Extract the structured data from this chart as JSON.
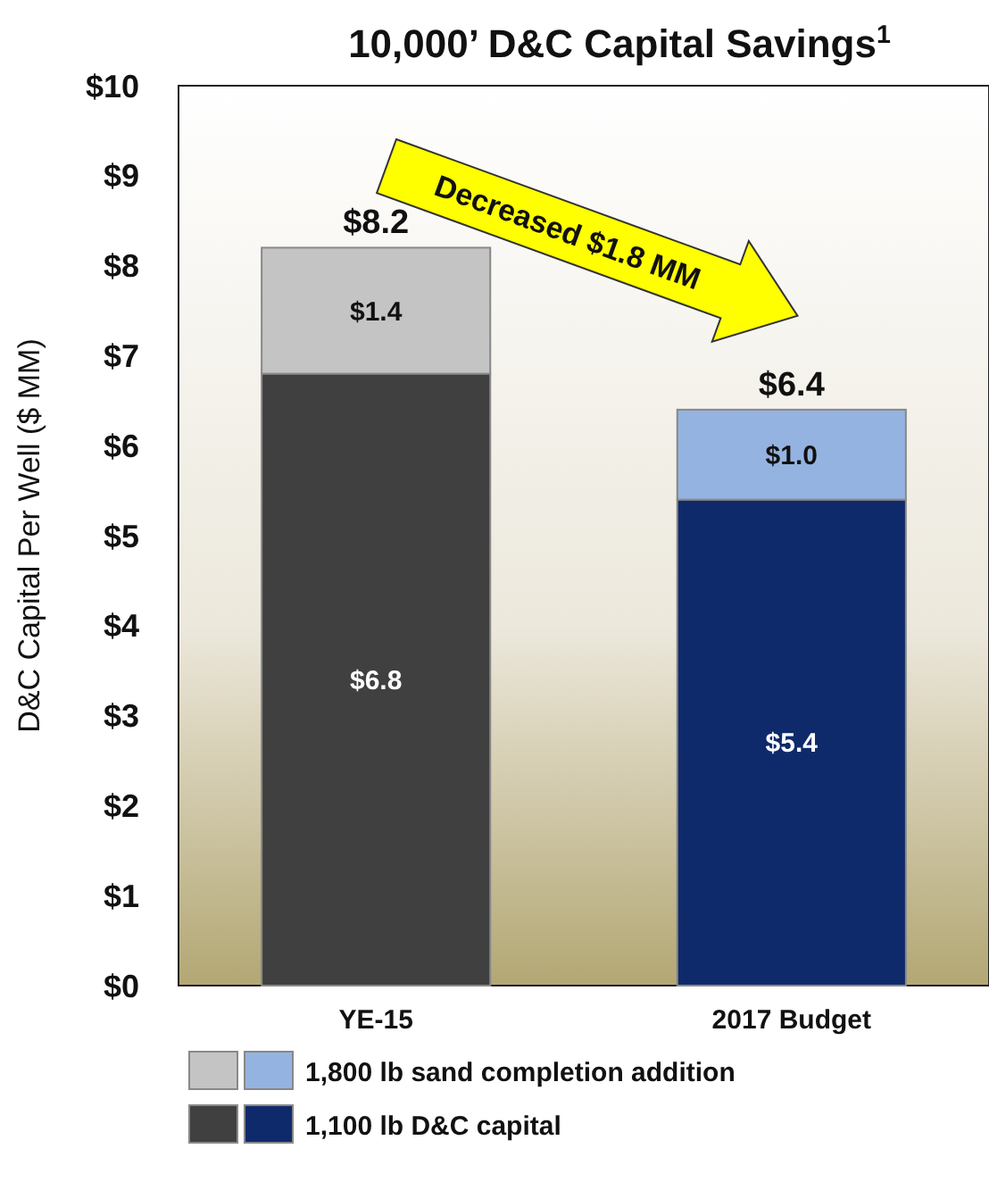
{
  "chart_data": {
    "type": "bar",
    "title": "10,000’ D&C Capital Savings$^{1}$",
    "ylabel": "D&C Capital Per Well ($ MM)",
    "categories": [
      "YE-15",
      "2017 Budget"
    ],
    "stacked": true,
    "series": [
      {
        "name": "1,100 lb D&C capital",
        "colors": [
          "#404040",
          "#0f2a6b"
        ],
        "values": [
          6.8,
          5.4
        ],
        "value_labels": [
          "$6.8",
          "$5.4"
        ]
      },
      {
        "name": "1,800 lb sand completion addition",
        "colors": [
          "#c4c4c4",
          "#95b3e0"
        ],
        "values": [
          1.4,
          1.0
        ],
        "value_labels": [
          "$1.4",
          "$1.0"
        ]
      }
    ],
    "totals": [
      "$8.2",
      "$6.4"
    ],
    "annotations": [
      "Decreased $1.8 MM"
    ],
    "ylim": [
      0,
      10
    ],
    "yticks": [
      {
        "value": 0,
        "label": "$0"
      },
      {
        "value": 1,
        "label": "$1"
      },
      {
        "value": 2,
        "label": "$2"
      },
      {
        "value": 3,
        "label": "$3"
      },
      {
        "value": 4,
        "label": "$4"
      },
      {
        "value": 5,
        "label": "$5"
      },
      {
        "value": 6,
        "label": "$6"
      },
      {
        "value": 7,
        "label": "$7"
      },
      {
        "value": 8,
        "label": "$8"
      },
      {
        "value": 9,
        "label": "$9"
      },
      {
        "value": 10,
        "label": "$10"
      }
    ],
    "grid": false,
    "legend": "bottom"
  }
}
